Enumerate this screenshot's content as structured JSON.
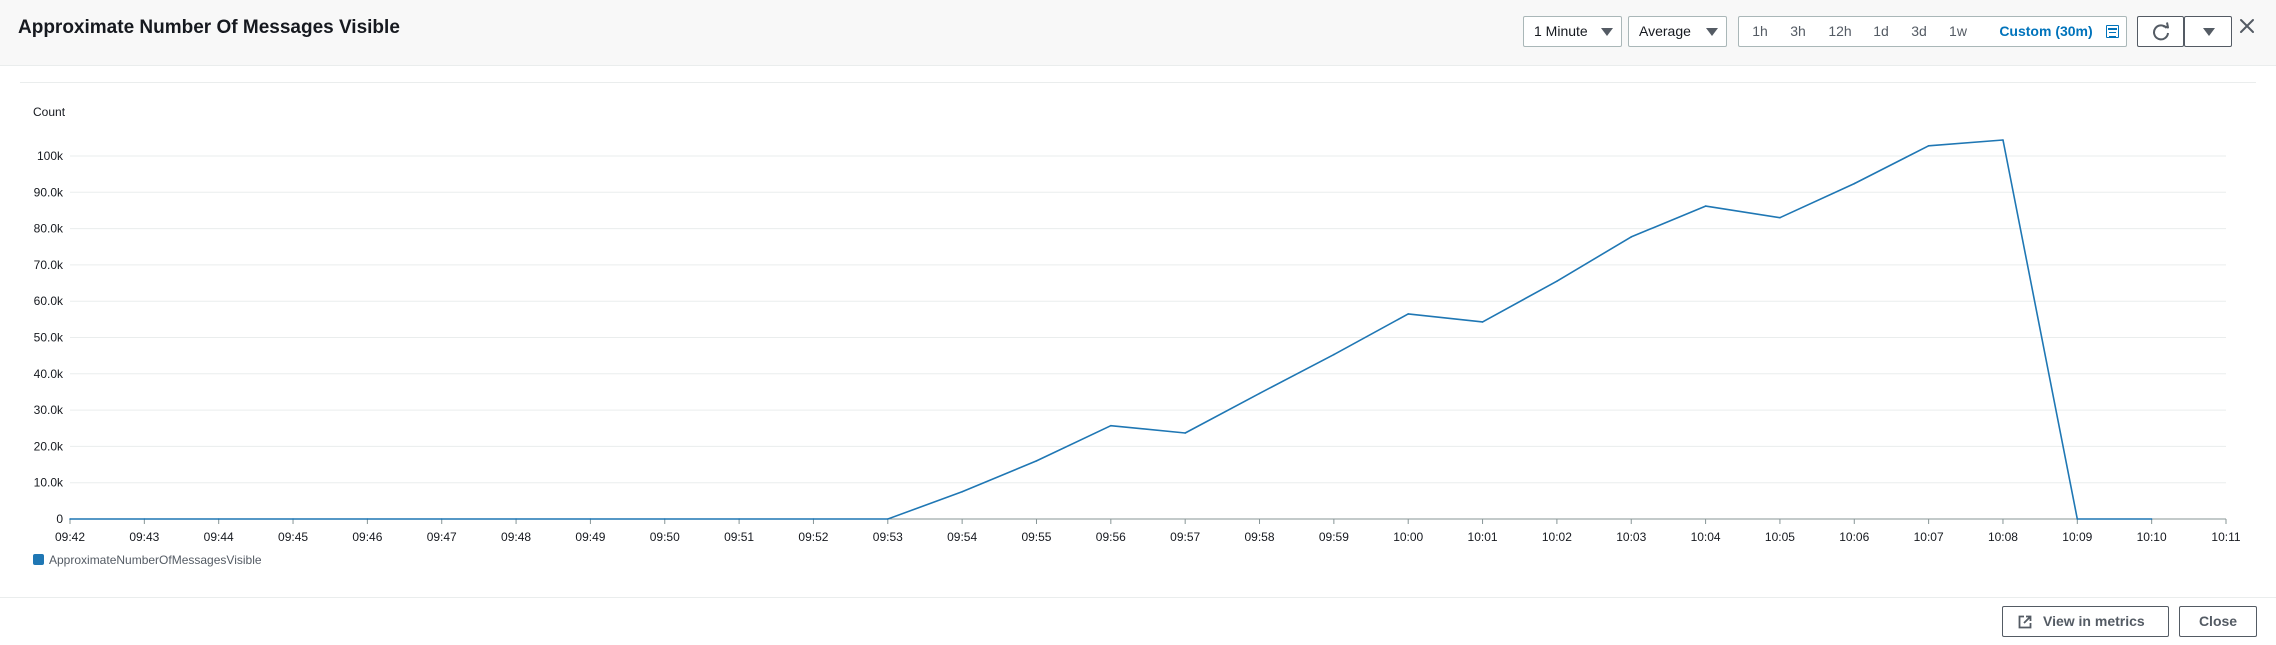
{
  "header": {
    "title": "Approximate Number Of Messages Visible",
    "period_select": "1 Minute",
    "stat_select": "Average",
    "ranges": [
      "1h",
      "3h",
      "12h",
      "1d",
      "3d",
      "1w"
    ],
    "custom_range": "Custom (30m)"
  },
  "colors": {
    "series": "#1f77b4",
    "accent": "#0073bb",
    "gridline": "#eaeded"
  },
  "chart_data": {
    "type": "line",
    "ylabel": "Count",
    "xlabel": "",
    "ylim": [
      0,
      100000
    ],
    "y_ticks": [
      0,
      10000,
      20000,
      30000,
      40000,
      50000,
      60000,
      70000,
      80000,
      90000,
      100000
    ],
    "y_tick_labels": [
      "0",
      "10.0k",
      "20.0k",
      "30.0k",
      "40.0k",
      "50.0k",
      "60.0k",
      "70.0k",
      "80.0k",
      "90.0k",
      "100k"
    ],
    "x_tick_labels": [
      "09:42",
      "09:43",
      "09:44",
      "09:45",
      "09:46",
      "09:47",
      "09:48",
      "09:49",
      "09:50",
      "09:51",
      "09:52",
      "09:53",
      "09:54",
      "09:55",
      "09:56",
      "09:57",
      "09:58",
      "09:59",
      "10:00",
      "10:01",
      "10:02",
      "10:03",
      "10:04",
      "10:05",
      "10:06",
      "10:07",
      "10:08",
      "10:09",
      "10:10",
      "10:11"
    ],
    "grid": true,
    "legend_position": "bottom-left",
    "series": [
      {
        "name": "ApproximateNumberOfMessagesVisible",
        "x": [
          "09:42",
          "09:43",
          "09:44",
          "09:45",
          "09:46",
          "09:47",
          "09:48",
          "09:49",
          "09:50",
          "09:51",
          "09:52",
          "09:53",
          "09:54",
          "09:55",
          "09:56",
          "09:57",
          "09:58",
          "09:59",
          "10:00",
          "10:01",
          "10:02",
          "10:03",
          "10:04",
          "10:05",
          "10:06",
          "10:07",
          "10:08",
          "10:09",
          "10:10"
        ],
        "values": [
          0,
          0,
          0,
          0,
          0,
          0,
          0,
          0,
          0,
          0,
          0,
          0,
          7500,
          16000,
          25700,
          23700,
          34600,
          45300,
          56500,
          54300,
          65500,
          77700,
          86200,
          83000,
          92400,
          102800,
          104400,
          0,
          0
        ]
      }
    ]
  },
  "footer": {
    "view_in_metrics": "View in metrics",
    "close": "Close"
  }
}
